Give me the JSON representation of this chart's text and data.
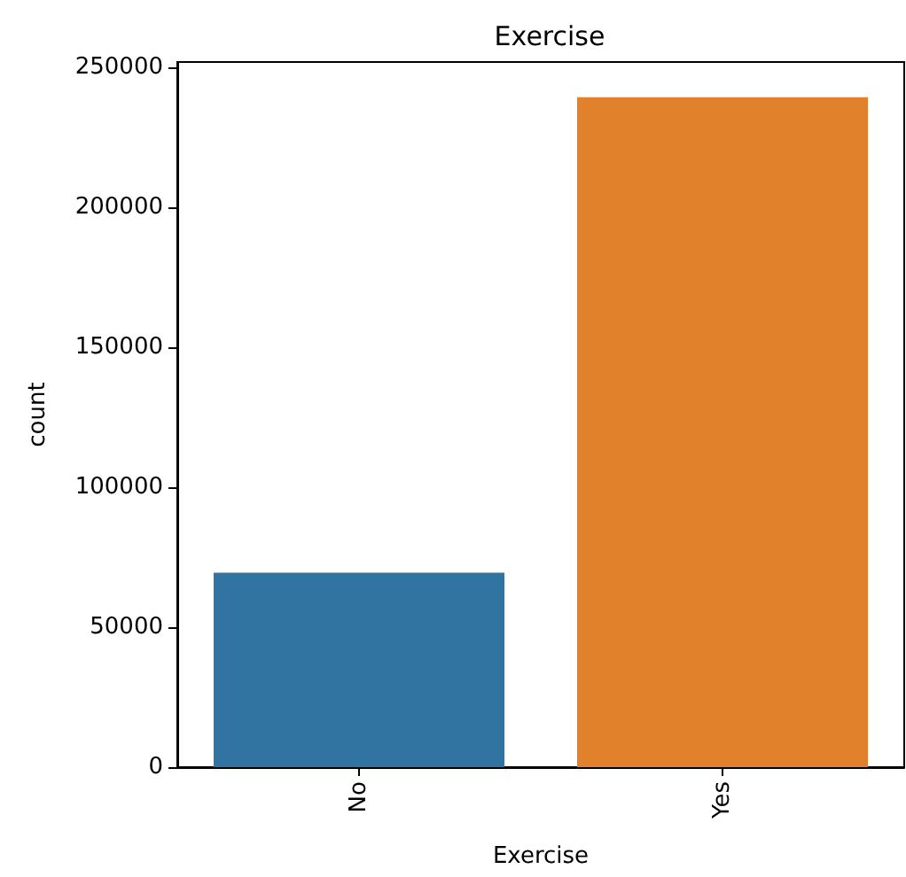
{
  "chart_data": {
    "type": "bar",
    "title": "Exercise",
    "xlabel": "Exercise",
    "ylabel": "count",
    "categories": [
      "No",
      "Yes"
    ],
    "values": [
      69500,
      239400
    ],
    "colors": [
      "#3274a1",
      "#e1812c"
    ],
    "ylim": [
      0,
      252000
    ],
    "yticks": [
      0,
      50000,
      100000,
      150000,
      200000,
      250000
    ]
  }
}
